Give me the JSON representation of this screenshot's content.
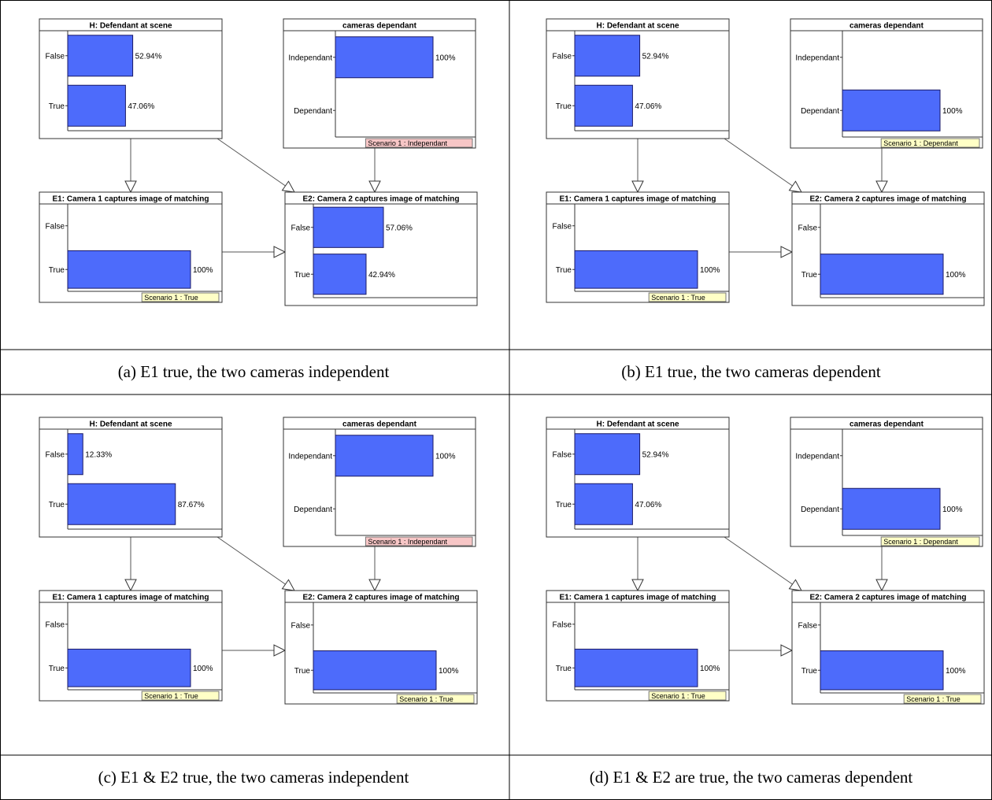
{
  "colors": {
    "bar": "#4d6bfb",
    "bar_border": "#1a1a66",
    "evidence_red": "#f7c6c6",
    "evidence_yellow": "#ffffc6",
    "line": "#555555"
  },
  "panels": [
    {
      "caption": "(a) E1 true, the two cameras independent",
      "nodes": {
        "H": {
          "title": "H: Defendant at scene",
          "states": [
            {
              "label": "False",
              "value": 52.94,
              "text": "52.94%"
            },
            {
              "label": "True",
              "value": 47.06,
              "text": "47.06%"
            }
          ]
        },
        "C": {
          "title": "cameras dependant",
          "states": [
            {
              "label": "Independant",
              "value": 100,
              "text": "100%"
            },
            {
              "label": "Dependant",
              "value": 0,
              "text": ""
            }
          ],
          "evidence": {
            "text": "Scenario 1 : Independant",
            "color": "red"
          }
        },
        "E1": {
          "title": "E1: Camera 1 captures image of matching",
          "states": [
            {
              "label": "False",
              "value": 0,
              "text": ""
            },
            {
              "label": "True",
              "value": 100,
              "text": "100%"
            }
          ],
          "evidence": {
            "text": "Scenario 1 : True",
            "color": "yellow"
          }
        },
        "E2": {
          "title": "E2: Camera 2 captures image of matching",
          "states": [
            {
              "label": "False",
              "value": 57.06,
              "text": "57.06%"
            },
            {
              "label": "True",
              "value": 42.94,
              "text": "42.94%"
            }
          ]
        }
      }
    },
    {
      "caption": "(b) E1 true, the two cameras dependent",
      "nodes": {
        "H": {
          "title": "H: Defendant at scene",
          "states": [
            {
              "label": "False",
              "value": 52.94,
              "text": "52.94%"
            },
            {
              "label": "True",
              "value": 47.06,
              "text": "47.06%"
            }
          ]
        },
        "C": {
          "title": "cameras dependant",
          "states": [
            {
              "label": "Independant",
              "value": 0,
              "text": ""
            },
            {
              "label": "Dependant",
              "value": 100,
              "text": "100%"
            }
          ],
          "evidence": {
            "text": "Scenario 1 : Dependant",
            "color": "yellow"
          }
        },
        "E1": {
          "title": "E1: Camera 1 captures image of matching",
          "states": [
            {
              "label": "False",
              "value": 0,
              "text": ""
            },
            {
              "label": "True",
              "value": 100,
              "text": "100%"
            }
          ],
          "evidence": {
            "text": "Scenario 1 : True",
            "color": "yellow"
          }
        },
        "E2": {
          "title": "E2: Camera 2 captures image of matching",
          "states": [
            {
              "label": "False",
              "value": 0,
              "text": ""
            },
            {
              "label": "True",
              "value": 100,
              "text": "100%"
            }
          ]
        }
      }
    },
    {
      "caption": "(c) E1 & E2 true, the two cameras independent",
      "nodes": {
        "H": {
          "title": "H: Defendant at scene",
          "states": [
            {
              "label": "False",
              "value": 12.33,
              "text": "12.33%"
            },
            {
              "label": "True",
              "value": 87.67,
              "text": "87.67%"
            }
          ]
        },
        "C": {
          "title": "cameras dependant",
          "states": [
            {
              "label": "Independant",
              "value": 100,
              "text": "100%"
            },
            {
              "label": "Dependant",
              "value": 0,
              "text": ""
            }
          ],
          "evidence": {
            "text": "Scenario 1 : Independant",
            "color": "red"
          }
        },
        "E1": {
          "title": "E1: Camera 1 captures image of matching",
          "states": [
            {
              "label": "False",
              "value": 0,
              "text": ""
            },
            {
              "label": "True",
              "value": 100,
              "text": "100%"
            }
          ],
          "evidence": {
            "text": "Scenario 1 : True",
            "color": "yellow"
          }
        },
        "E2": {
          "title": "E2: Camera 2 captures image of matching",
          "states": [
            {
              "label": "False",
              "value": 0,
              "text": ""
            },
            {
              "label": "True",
              "value": 100,
              "text": "100%"
            }
          ],
          "evidence": {
            "text": "Scenario 1 : True",
            "color": "yellow"
          }
        }
      }
    },
    {
      "caption": "(d) E1 & E2 are true, the two cameras dependent",
      "nodes": {
        "H": {
          "title": "H: Defendant at scene",
          "states": [
            {
              "label": "False",
              "value": 52.94,
              "text": "52.94%"
            },
            {
              "label": "True",
              "value": 47.06,
              "text": "47.06%"
            }
          ]
        },
        "C": {
          "title": "cameras dependant",
          "states": [
            {
              "label": "Independant",
              "value": 0,
              "text": ""
            },
            {
              "label": "Dependant",
              "value": 100,
              "text": "100%"
            }
          ],
          "evidence": {
            "text": "Scenario 1 : Dependant",
            "color": "yellow"
          }
        },
        "E1": {
          "title": "E1: Camera 1 captures image of matching",
          "states": [
            {
              "label": "False",
              "value": 0,
              "text": ""
            },
            {
              "label": "True",
              "value": 100,
              "text": "100%"
            }
          ],
          "evidence": {
            "text": "Scenario 1 : True",
            "color": "yellow"
          }
        },
        "E2": {
          "title": "E2: Camera 2 captures image of matching",
          "states": [
            {
              "label": "False",
              "value": 0,
              "text": ""
            },
            {
              "label": "True",
              "value": 100,
              "text": "100%"
            }
          ],
          "evidence": {
            "text": "Scenario 1 : True",
            "color": "yellow"
          }
        }
      }
    }
  ]
}
